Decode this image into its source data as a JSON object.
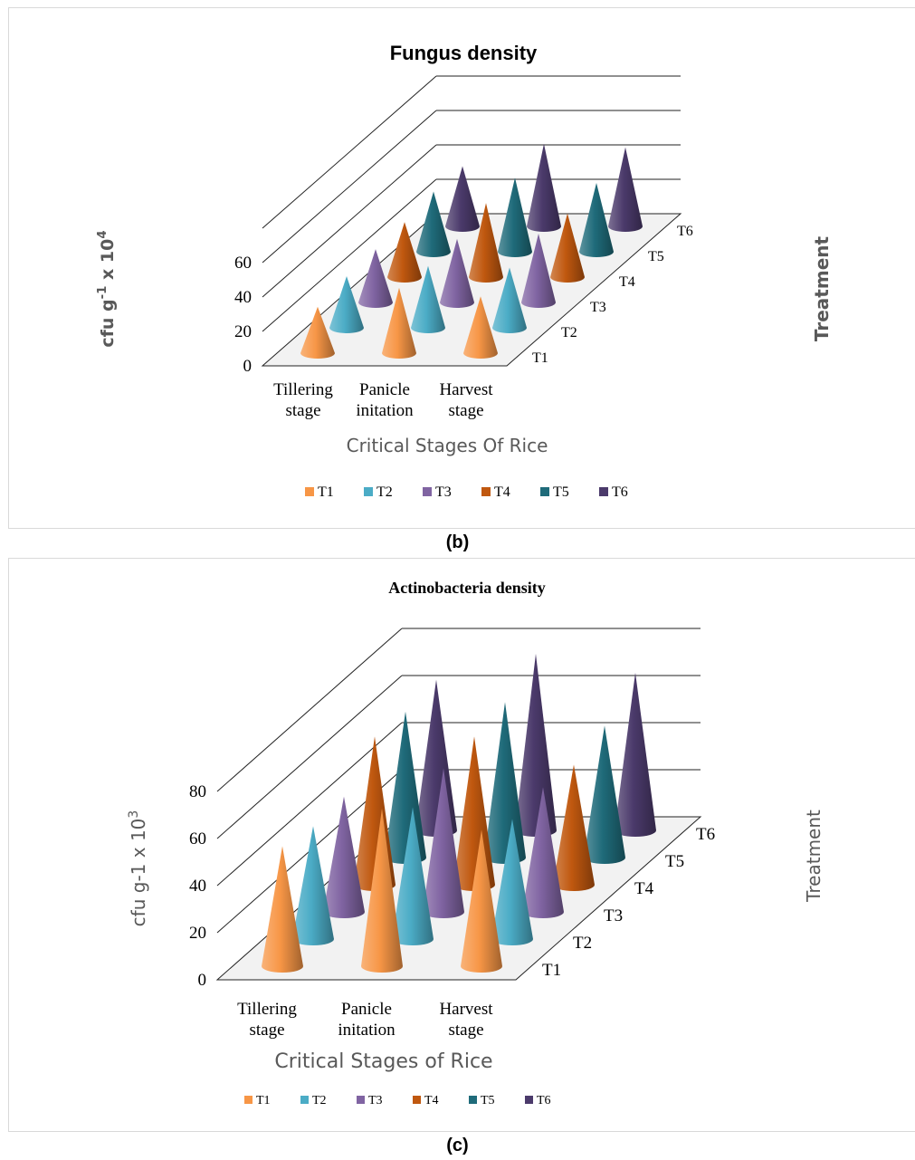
{
  "captions": {
    "b": "(b)",
    "c": "(c)"
  },
  "colors": {
    "T1": "#f79646",
    "T2": "#4bacc6",
    "T3": "#8064a2",
    "T4": "#c0580f",
    "T5": "#1f6b7a",
    "T6": "#4b3a6b"
  },
  "chart_data": [
    {
      "type": "bar",
      "shape": "3d-cone",
      "title": "Fungus density",
      "xlabel": "Critical Stages Of Rice",
      "ylabel_base": "cfu g",
      "ylabel_sup1": "-1",
      "ylabel_mid": " x 10",
      "ylabel_sup2": "4",
      "zlabel": "Treatment",
      "categories": [
        "Tillering\nstage",
        "Panicle\ninitation",
        "Harvest\nstage"
      ],
      "yticks": [
        0,
        20,
        40,
        60
      ],
      "ylim": [
        0,
        60
      ],
      "legend_position": "bottom",
      "series": [
        {
          "name": "T1",
          "values": [
            27,
            38,
            33
          ]
        },
        {
          "name": "T2",
          "values": [
            30,
            36,
            35
          ]
        },
        {
          "name": "T3",
          "values": [
            31,
            37,
            40
          ]
        },
        {
          "name": "T4",
          "values": [
            32,
            43,
            37
          ]
        },
        {
          "name": "T5",
          "values": [
            35,
            43,
            40
          ]
        },
        {
          "name": "T6",
          "values": [
            35,
            48,
            46
          ]
        }
      ]
    },
    {
      "type": "bar",
      "shape": "3d-cone",
      "title": "Actinobacteria density",
      "xlabel": "Critical Stages of Rice",
      "ylabel": "cfu g-1 x 10",
      "ylabel_sup": "3",
      "zlabel": "Treatment",
      "categories": [
        "Tillering\nstage",
        "Panicle\ninitation",
        "Harvest\nstage"
      ],
      "yticks": [
        0,
        20,
        40,
        60,
        80
      ],
      "ylim": [
        0,
        80
      ],
      "legend_position": "bottom",
      "series": [
        {
          "name": "T1",
          "values": [
            51,
            67,
            58
          ]
        },
        {
          "name": "T2",
          "values": [
            48,
            56,
            51
          ]
        },
        {
          "name": "T3",
          "values": [
            49,
            61,
            53
          ]
        },
        {
          "name": "T4",
          "values": [
            63,
            63,
            51
          ]
        },
        {
          "name": "T5",
          "values": [
            62,
            66,
            56
          ]
        },
        {
          "name": "T6",
          "values": [
            64,
            75,
            67
          ]
        }
      ]
    }
  ]
}
